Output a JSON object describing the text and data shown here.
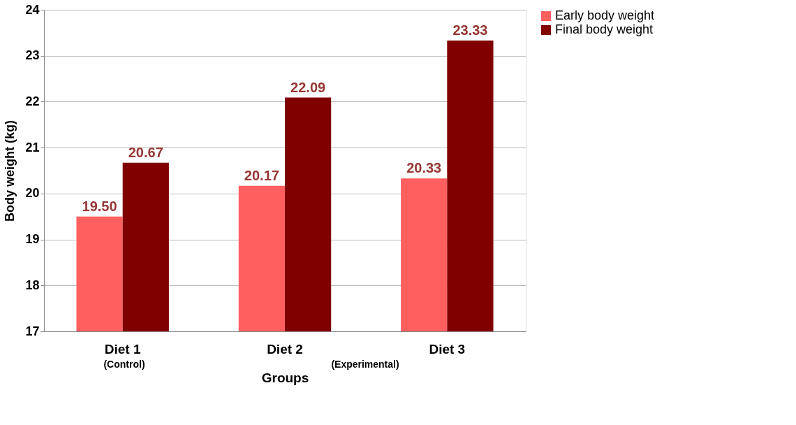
{
  "chart_data": {
    "type": "bar",
    "xlabel": "Groups",
    "ylabel": "Body weight (kg)",
    "categories": [
      "Diet 1",
      "Diet 2",
      "Diet 3"
    ],
    "series": [
      {
        "name": "Early body weight",
        "color": "#ff5f5f",
        "values": [
          19.5,
          20.17,
          20.33
        ],
        "value_labels": [
          "19.50",
          "20.17",
          "20.33"
        ]
      },
      {
        "name": "Final body weight",
        "color": "#800000",
        "values": [
          20.67,
          22.09,
          23.33
        ],
        "value_labels": [
          "20.67",
          "22.09",
          "23.33"
        ]
      }
    ],
    "ylim": [
      17,
      24
    ],
    "yticks": [
      17,
      18,
      19,
      20,
      21,
      22,
      23,
      24
    ],
    "grid": "y",
    "legend": "right",
    "annotations": [
      "(Control)",
      "(Experimental)"
    ]
  }
}
